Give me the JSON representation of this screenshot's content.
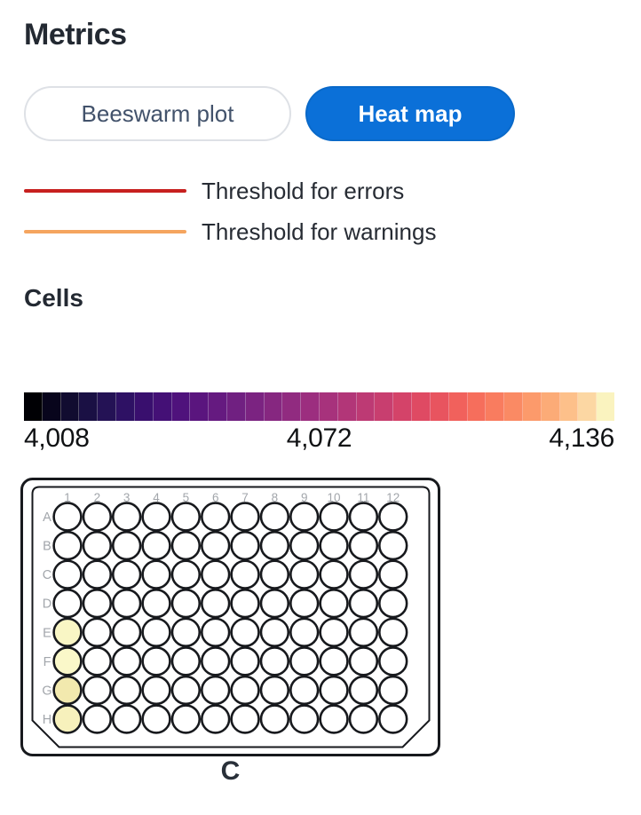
{
  "header": {
    "title": "Metrics"
  },
  "view_toggle": {
    "beeswarm_label": "Beeswarm plot",
    "heatmap_label": "Heat map",
    "active": "Heat map",
    "active_color": "#0b70d8"
  },
  "legend": {
    "items": [
      {
        "label": "Threshold for errors",
        "color": "#c7201f"
      },
      {
        "label": "Threshold for warnings",
        "color": "#f5a55f"
      }
    ]
  },
  "section": {
    "title": "Cells"
  },
  "colorbar": {
    "min_label": "4,008",
    "mid_label": "4,072",
    "max_label": "4,136",
    "colors": [
      "#000004",
      "#08051c",
      "#110c30",
      "#1a1044",
      "#241255",
      "#2e1164",
      "#390f6e",
      "#441076",
      "#4f127c",
      "#5a157e",
      "#651a80",
      "#702081",
      "#7b2381",
      "#862780",
      "#912b80",
      "#9c2e7f",
      "#a7327c",
      "#b23678",
      "#bd3a74",
      "#c83e6f",
      "#d44369",
      "#df4a63",
      "#e8545f",
      "#f1615c",
      "#f66e5c",
      "#f97c5f",
      "#fa8a64",
      "#fc9a6b",
      "#fcab77",
      "#fdc08a",
      "#fcd7a3",
      "#faf3bf"
    ]
  },
  "plate": {
    "caption": "C",
    "column_labels": [
      "1",
      "2",
      "3",
      "4",
      "5",
      "6",
      "7",
      "8",
      "9",
      "10",
      "11",
      "12"
    ],
    "row_labels": [
      "A",
      "B",
      "C",
      "D",
      "E",
      "F",
      "G",
      "H"
    ],
    "default_well_color": "#ffffff",
    "colored_wells": {
      "E1": "#f9f6c5",
      "F1": "#faf8c9",
      "G1": "#f2e9ae",
      "H1": "#f7f1bc"
    }
  },
  "chart_data": {
    "type": "heatmap",
    "title": "Cells",
    "colormap": "magma",
    "legend_position": "above",
    "scale": {
      "min": 4008,
      "mid": 4072,
      "max": 4136,
      "tick_labels": [
        "4,008",
        "4,072",
        "4,136"
      ]
    },
    "rows": [
      "A",
      "B",
      "C",
      "D",
      "E",
      "F",
      "G",
      "H"
    ],
    "columns": [
      "1",
      "2",
      "3",
      "4",
      "5",
      "6",
      "7",
      "8",
      "9",
      "10",
      "11",
      "12"
    ],
    "cells_with_data": [
      {
        "well": "E1",
        "color": "#f9f6c5"
      },
      {
        "well": "F1",
        "color": "#faf8c9"
      },
      {
        "well": "G1",
        "color": "#f2e9ae"
      },
      {
        "well": "H1",
        "color": "#f7f1bc"
      }
    ],
    "empty_cell_color": "#ffffff"
  }
}
